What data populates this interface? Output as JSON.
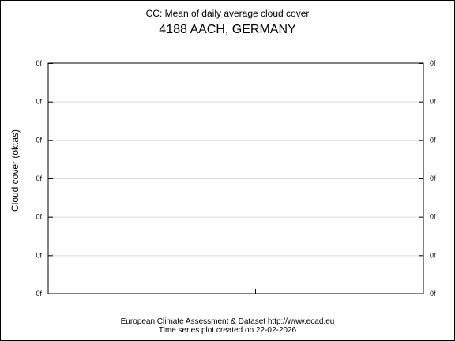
{
  "chart_data": {
    "type": "line",
    "title": "CC: Mean of daily average cloud cover",
    "subtitle": "4188 AACH, GERMANY",
    "ylabel": "Cloud cover (oktas)",
    "y_tick_labels": [
      "0f",
      "0f",
      "0f",
      "0f",
      "0f",
      "0f",
      "0f"
    ],
    "grid": true,
    "series": []
  },
  "footer": {
    "source": "European Climate Assessment & Dataset  http://www.ecad.eu",
    "created": "Time series plot created on 22-02-2026"
  },
  "colors": {
    "frame": "#000000",
    "grid": "#d9d9d9",
    "background": "#ffffff"
  }
}
